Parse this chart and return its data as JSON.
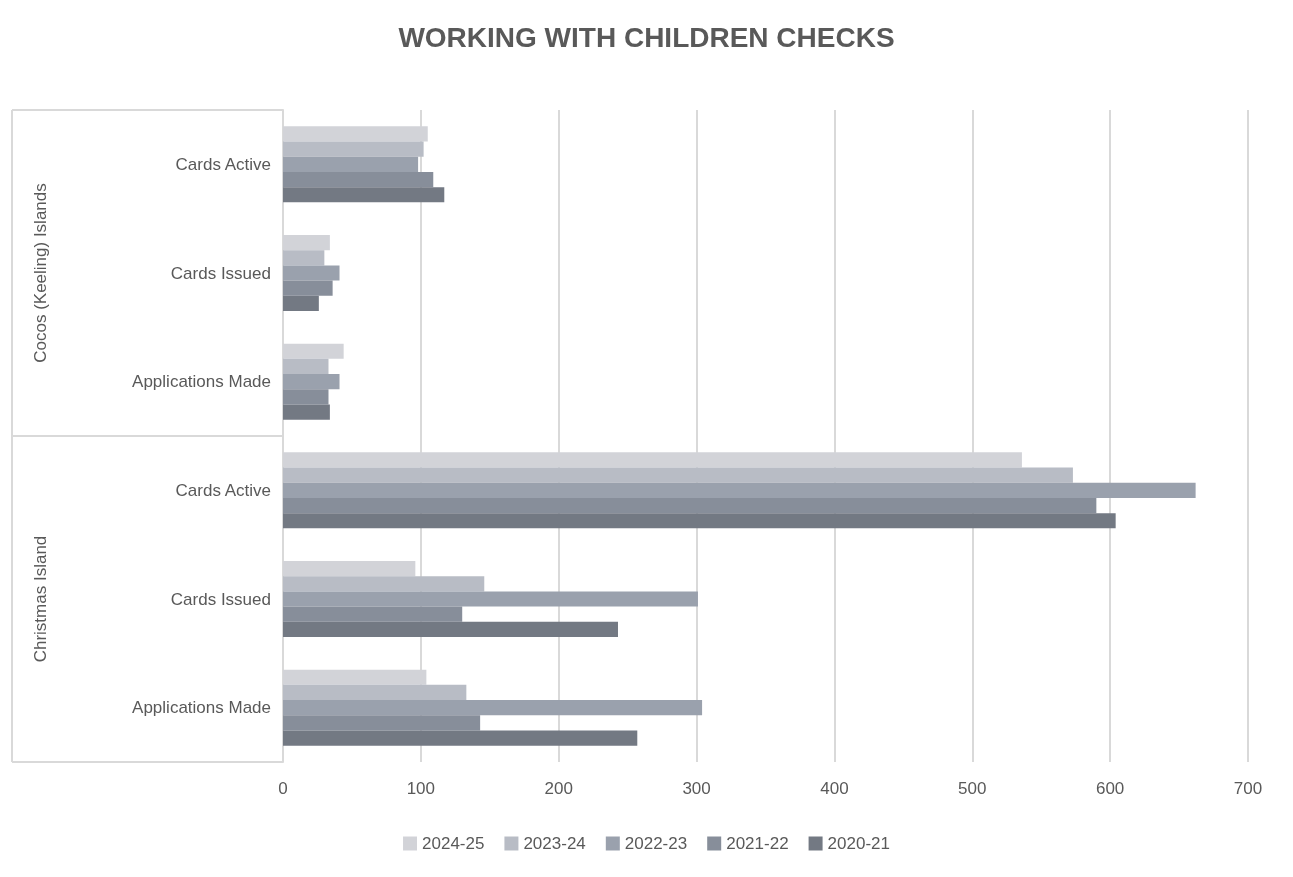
{
  "chart_data": {
    "type": "bar",
    "orientation": "horizontal",
    "title": "WORKING WITH CHILDREN CHECKS",
    "categories": [
      "Cards Active",
      "Cards Issued",
      "Applications Made",
      "Cards Active",
      "Cards Issued",
      "Applications Made"
    ],
    "annotations": [
      "Cocos (Keeling) Islands",
      "Christmas Island"
    ],
    "series": [
      {
        "name": "2024-25",
        "color": "#d2d3d8",
        "values": [
          105,
          34,
          44,
          536,
          96,
          104
        ]
      },
      {
        "name": "2023-24",
        "color": "#b8bcc5",
        "values": [
          102,
          30,
          33,
          573,
          146,
          133
        ]
      },
      {
        "name": "2022-23",
        "color": "#9aa1ad",
        "values": [
          98,
          41,
          41,
          662,
          301,
          304
        ]
      },
      {
        "name": "2021-22",
        "color": "#878e9a",
        "values": [
          109,
          36,
          33,
          590,
          130,
          143
        ]
      },
      {
        "name": "2020-21",
        "color": "#737983",
        "values": [
          117,
          26,
          34,
          604,
          243,
          257
        ]
      }
    ],
    "xlim": [
      0,
      700
    ],
    "xticks": [
      0,
      100,
      200,
      300,
      400,
      500,
      600,
      700
    ],
    "grid": "x",
    "legend": "bottom"
  }
}
